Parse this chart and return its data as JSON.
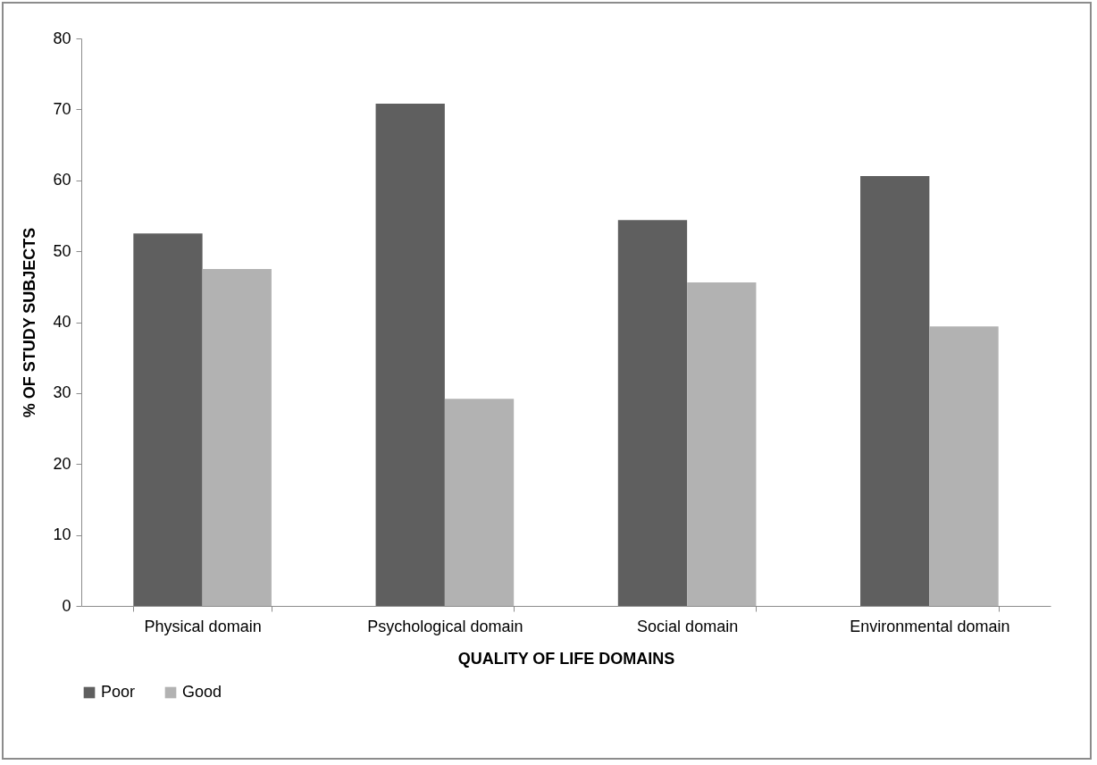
{
  "chart_data": {
    "type": "bar",
    "xlabel": "QUALITY OF LIFE DOMAINS",
    "ylabel": "% OF STUDY SUBJECTS",
    "categories": [
      "Physical domain",
      "Psychological domain",
      "Social domain",
      "Environmental domain"
    ],
    "series": [
      {
        "name": "Poor",
        "color": "#5f5f5f",
        "values": [
          52.5,
          70.8,
          54.4,
          60.6
        ]
      },
      {
        "name": "Good",
        "color": "#b2b2b2",
        "values": [
          47.5,
          29.2,
          45.6,
          39.4
        ]
      }
    ],
    "ylim": [
      0,
      80
    ],
    "yticks": [
      0,
      10,
      20,
      30,
      40,
      50,
      60,
      70,
      80
    ],
    "grid": false,
    "legend": "bottom"
  }
}
